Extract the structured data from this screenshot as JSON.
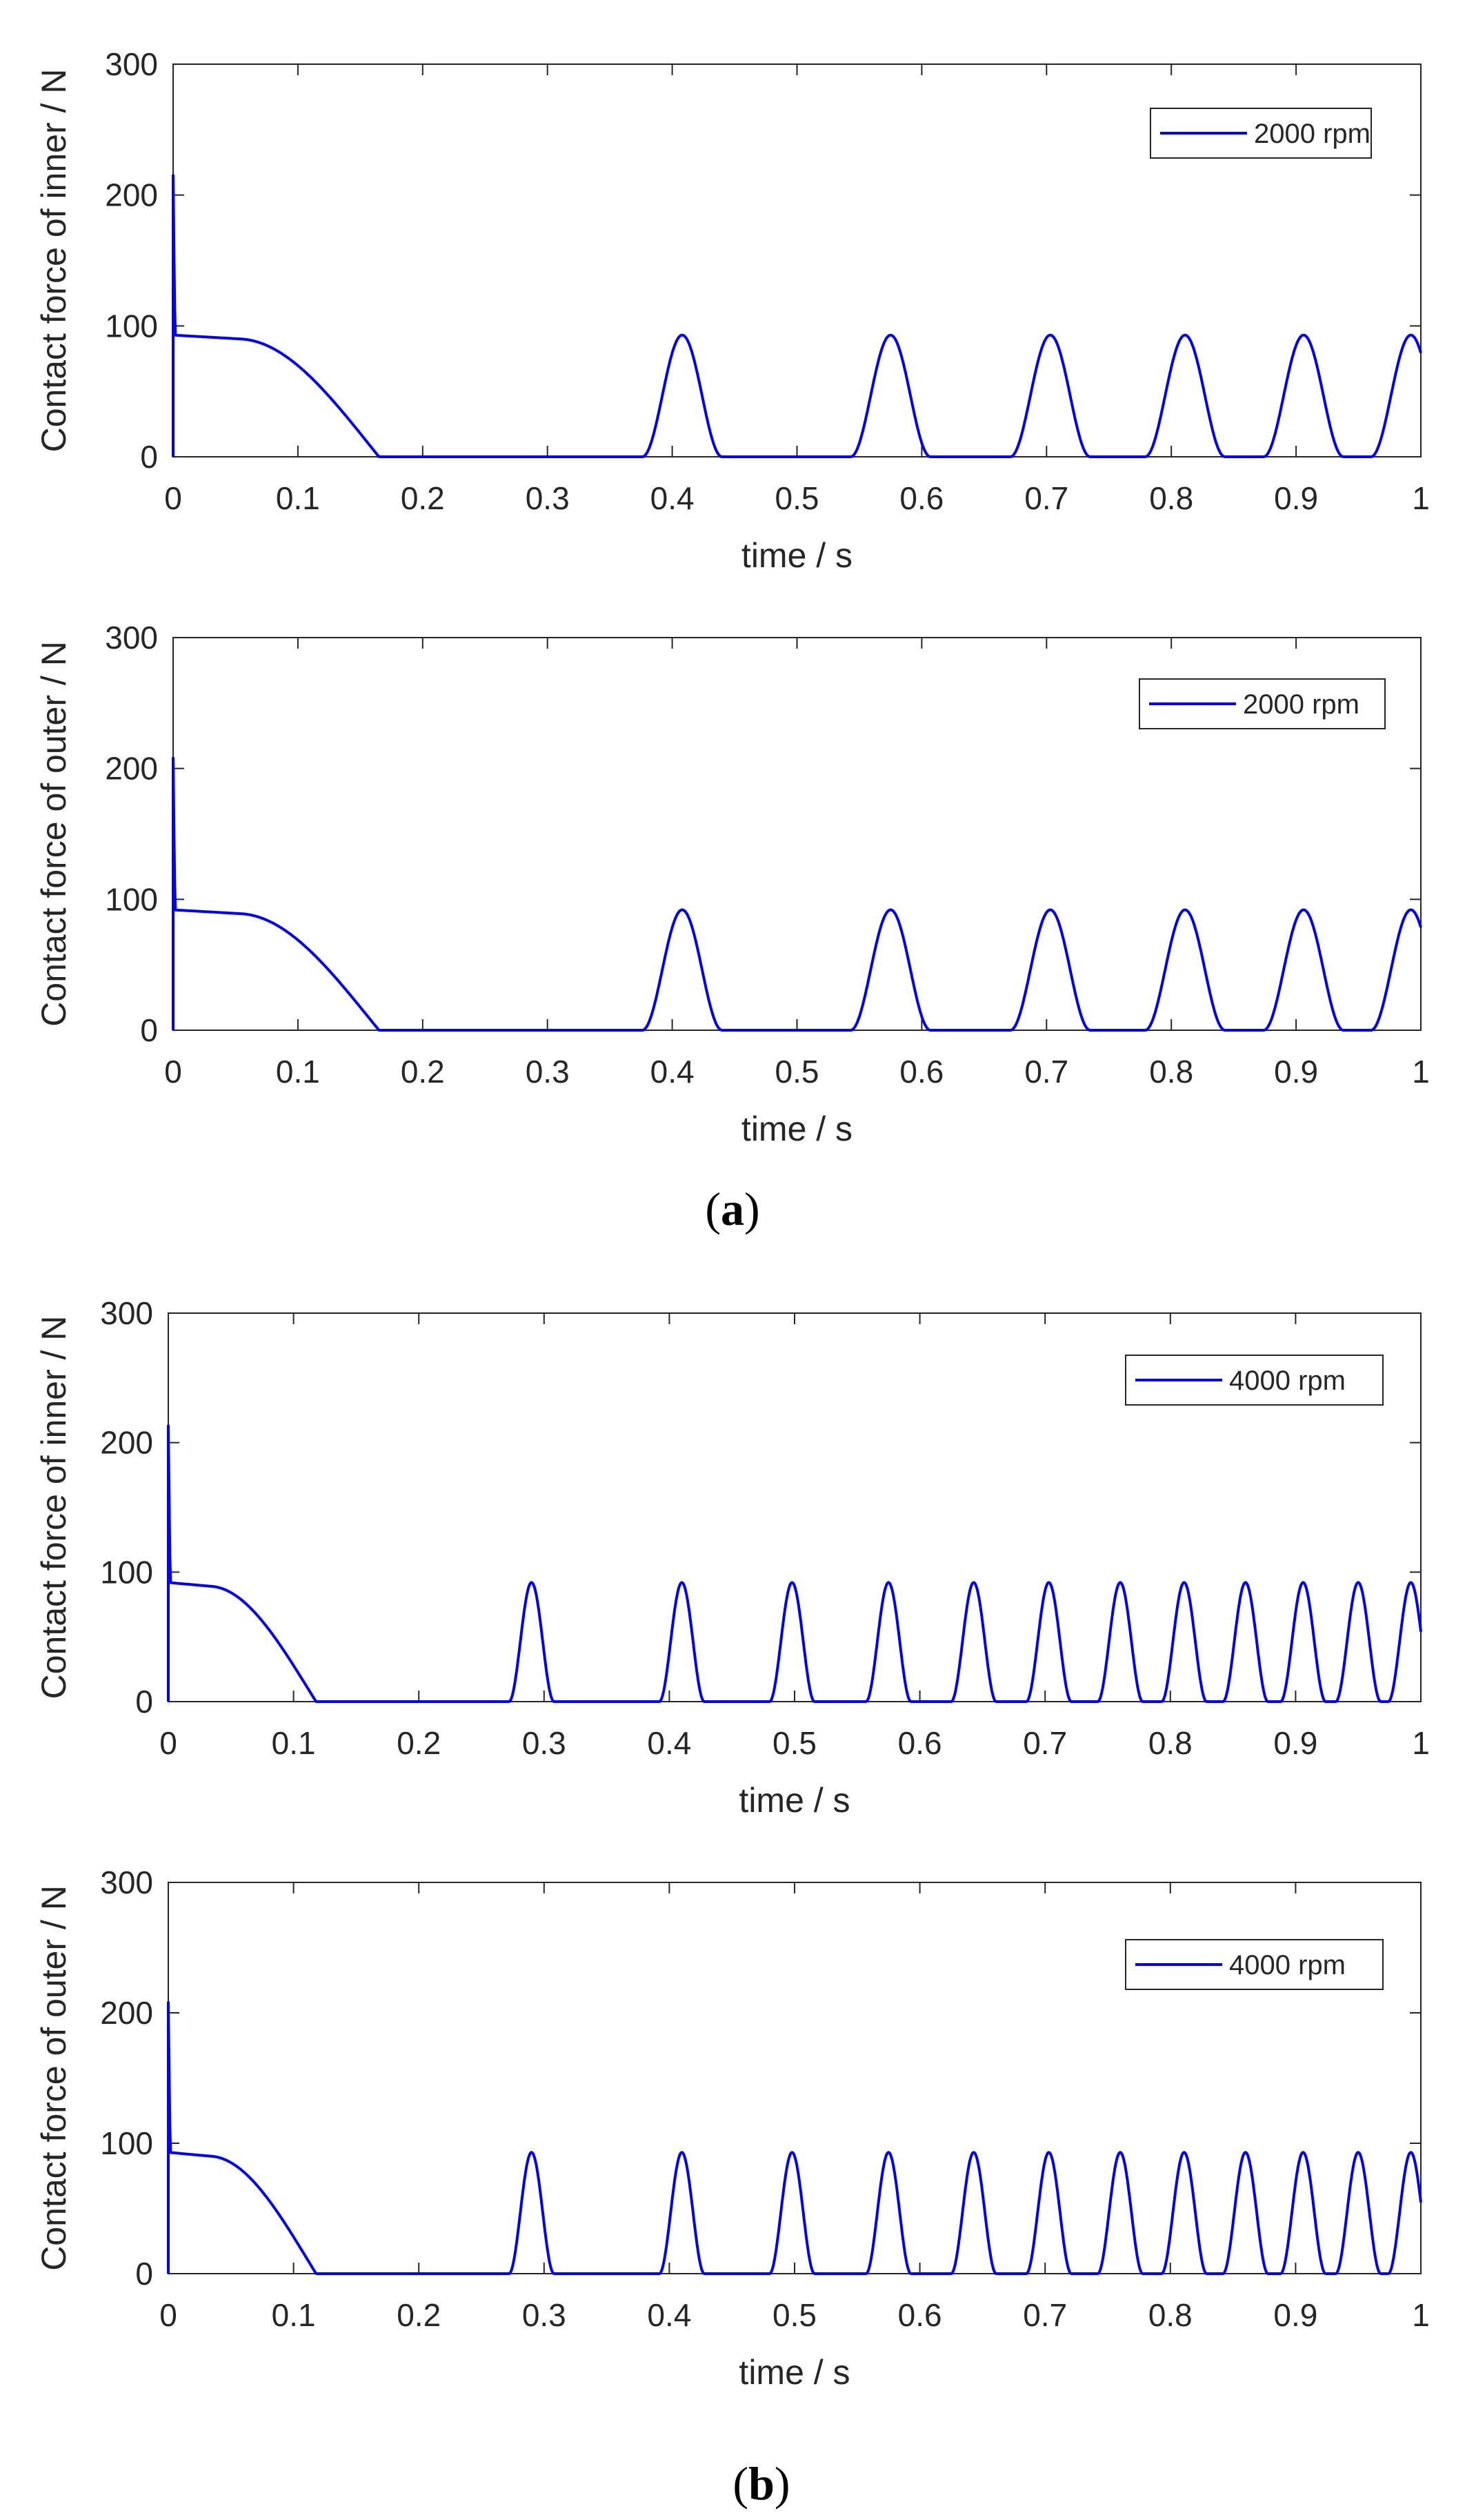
{
  "panels": [
    {
      "label": "a",
      "charts": [
        0,
        1
      ]
    },
    {
      "label": "b",
      "charts": [
        2,
        3
      ]
    }
  ],
  "colors": {
    "series": "#0000ff",
    "axis": "#262626",
    "background": "#ffffff"
  },
  "chart_data": [
    {
      "type": "line",
      "title": "",
      "xlabel": "time / s",
      "ylabel": "Contact force of inner / N",
      "xlim": [
        0,
        1
      ],
      "ylim": [
        0,
        300
      ],
      "xticks": [
        0,
        0.1,
        0.2,
        0.3,
        0.4,
        0.5,
        0.6,
        0.7,
        0.8,
        0.9,
        1
      ],
      "xtick_labels": [
        "0",
        "0.1",
        "0.2",
        "0.3",
        "0.4",
        "0.5",
        "0.6",
        "0.7",
        "0.8",
        "0.9",
        "1"
      ],
      "yticks": [
        0,
        100,
        200,
        300
      ],
      "ytick_labels": [
        "0",
        "100",
        "200",
        "300"
      ],
      "grid": false,
      "legend_position": "top-right",
      "series": [
        {
          "name": "2000 rpm",
          "initial_spike": 215,
          "plateau": 93,
          "plateau_end": 0.055,
          "decay_end": 0.165,
          "peak_height": 93,
          "peak_half_width": 0.032,
          "peaks": [
            0.408,
            0.575,
            0.703,
            0.811,
            0.906,
            0.992
          ]
        }
      ]
    },
    {
      "type": "line",
      "title": "",
      "xlabel": "time / s",
      "ylabel": "Contact force of outer / N",
      "xlim": [
        0,
        1
      ],
      "ylim": [
        0,
        300
      ],
      "xticks": [
        0,
        0.1,
        0.2,
        0.3,
        0.4,
        0.5,
        0.6,
        0.7,
        0.8,
        0.9,
        1
      ],
      "xtick_labels": [
        "0",
        "0.1",
        "0.2",
        "0.3",
        "0.4",
        "0.5",
        "0.6",
        "0.7",
        "0.8",
        "0.9",
        "1"
      ],
      "yticks": [
        0,
        100,
        200,
        300
      ],
      "ytick_labels": [
        "0",
        "100",
        "200",
        "300"
      ],
      "grid": false,
      "legend_position": "top-right",
      "series": [
        {
          "name": "2000 rpm",
          "initial_spike": 208,
          "plateau": 92,
          "plateau_end": 0.055,
          "decay_end": 0.165,
          "peak_height": 92,
          "peak_half_width": 0.032,
          "peaks": [
            0.408,
            0.575,
            0.703,
            0.811,
            0.906,
            0.992
          ]
        }
      ]
    },
    {
      "type": "line",
      "title": "",
      "xlabel": "time / s",
      "ylabel": "Contact force of inner / N",
      "xlim": [
        0,
        1
      ],
      "ylim": [
        0,
        300
      ],
      "xticks": [
        0,
        0.1,
        0.2,
        0.3,
        0.4,
        0.5,
        0.6,
        0.7,
        0.8,
        0.9,
        1
      ],
      "xtick_labels": [
        "0",
        "0.1",
        "0.2",
        "0.3",
        "0.4",
        "0.5",
        "0.6",
        "0.7",
        "0.8",
        "0.9",
        "1"
      ],
      "yticks": [
        0,
        100,
        200,
        300
      ],
      "ytick_labels": [
        "0",
        "100",
        "200",
        "300"
      ],
      "grid": false,
      "legend_position": "top-right",
      "series": [
        {
          "name": "4000 rpm",
          "initial_spike": 213,
          "plateau": 92,
          "plateau_end": 0.035,
          "decay_end": 0.118,
          "peak_height": 92,
          "peak_half_width": 0.018,
          "peaks": [
            0.29,
            0.41,
            0.498,
            0.575,
            0.643,
            0.703,
            0.76,
            0.811,
            0.86,
            0.906,
            0.95,
            0.992
          ]
        }
      ]
    },
    {
      "type": "line",
      "title": "",
      "xlabel": "time / s",
      "ylabel": "Contact force of outer / N",
      "xlim": [
        0,
        1
      ],
      "ylim": [
        0,
        300
      ],
      "xticks": [
        0,
        0.1,
        0.2,
        0.3,
        0.4,
        0.5,
        0.6,
        0.7,
        0.8,
        0.9,
        1
      ],
      "xtick_labels": [
        "0",
        "0.1",
        "0.2",
        "0.3",
        "0.4",
        "0.5",
        "0.6",
        "0.7",
        "0.8",
        "0.9",
        "1"
      ],
      "yticks": [
        0,
        100,
        200,
        300
      ],
      "ytick_labels": [
        "0",
        "100",
        "200",
        "300"
      ],
      "grid": false,
      "legend_position": "top-right",
      "series": [
        {
          "name": "4000 rpm",
          "initial_spike": 208,
          "plateau": 93,
          "plateau_end": 0.035,
          "decay_end": 0.118,
          "peak_height": 93,
          "peak_half_width": 0.018,
          "peaks": [
            0.29,
            0.41,
            0.498,
            0.575,
            0.643,
            0.703,
            0.76,
            0.811,
            0.86,
            0.906,
            0.95,
            0.992
          ]
        }
      ]
    }
  ]
}
